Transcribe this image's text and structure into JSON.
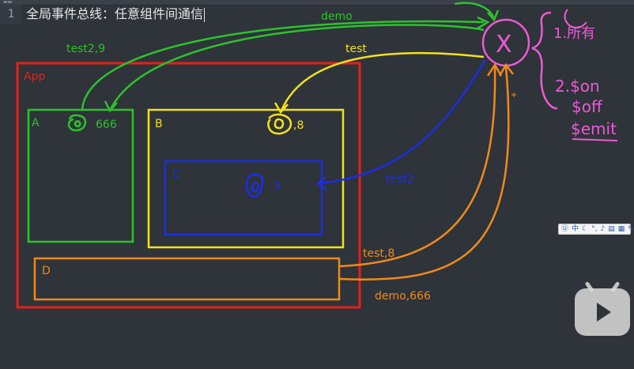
{
  "editor": {
    "line_number": "1",
    "line_text": "全局事件总线：任意组件间通信"
  },
  "diagram": {
    "app_label": "App",
    "comp_a_label": "A",
    "comp_b_label": "B",
    "comp_c_label": "C",
    "comp_d_label": "D",
    "a_value": "666",
    "b_value": ",8",
    "c_value": "9",
    "bus_symbol": "X",
    "edge_demo": "demo",
    "edge_test29": "test2,9",
    "edge_test": "test",
    "edge_test2": "test2",
    "edge_test8": "test,8",
    "edge_demo666": "demo,666",
    "note_1": "1.所有",
    "note_2_on": "2.$on",
    "note_2_off": "$off",
    "note_2_emit": "$emit"
  },
  "ime_toolbar": {
    "label": "中"
  },
  "colors": {
    "background": "#2f333a",
    "app": "#e0231b",
    "green": "#2bc32b",
    "yellow": "#f2e21a",
    "blue": "#1a2fe0",
    "orange": "#f08a18",
    "magenta": "#ec5ad6"
  }
}
